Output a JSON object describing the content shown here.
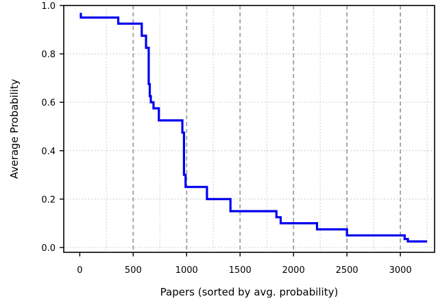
{
  "chart_data": {
    "type": "line",
    "title": "",
    "xlabel": "Papers (sorted by avg. probability)",
    "ylabel": "Average Probability",
    "xlim": [
      -150,
      3320
    ],
    "ylim": [
      -0.02,
      1.0
    ],
    "x_ticks": [
      0,
      500,
      1000,
      1500,
      2000,
      2500,
      3000
    ],
    "x_tick_labels": [
      "0",
      "500",
      "1000",
      "1500",
      "2000",
      "2500",
      "3000"
    ],
    "y_ticks": [
      0.0,
      0.2,
      0.4,
      0.6,
      0.8,
      1.0
    ],
    "y_tick_labels": [
      "0.0",
      "0.2",
      "0.4",
      "0.6",
      "0.8",
      "1.0"
    ],
    "grid": {
      "x_major": "dashed",
      "y_major": "dotted",
      "x_minor_dotted": [
        250,
        750,
        1250,
        1750,
        2250,
        2750,
        3250
      ]
    },
    "series": [
      {
        "color": "#0000ee",
        "step": true,
        "x": [
          0,
          10,
          360,
          580,
          620,
          645,
          655,
          665,
          690,
          740,
          960,
          975,
          990,
          1190,
          1410,
          1840,
          1880,
          2220,
          2500,
          3040,
          3070,
          3250
        ],
        "y": [
          0.965,
          0.95,
          0.925,
          0.875,
          0.825,
          0.675,
          0.625,
          0.6,
          0.575,
          0.525,
          0.475,
          0.3,
          0.25,
          0.2,
          0.15,
          0.125,
          0.1,
          0.075,
          0.05,
          0.035,
          0.025,
          0.025
        ]
      }
    ]
  }
}
